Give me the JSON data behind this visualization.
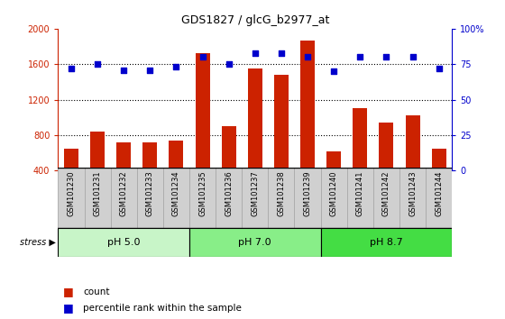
{
  "title": "GDS1827 / glcG_b2977_at",
  "samples": [
    "GSM101230",
    "GSM101231",
    "GSM101232",
    "GSM101233",
    "GSM101234",
    "GSM101235",
    "GSM101236",
    "GSM101237",
    "GSM101238",
    "GSM101239",
    "GSM101240",
    "GSM101241",
    "GSM101242",
    "GSM101243",
    "GSM101244"
  ],
  "counts": [
    650,
    840,
    720,
    720,
    740,
    1720,
    900,
    1550,
    1480,
    1870,
    620,
    1100,
    940,
    1020,
    650
  ],
  "percentile": [
    72,
    75,
    71,
    71,
    73,
    80,
    75,
    83,
    83,
    80,
    70,
    80,
    80,
    80,
    72
  ],
  "groups": [
    {
      "label": "pH 5.0",
      "start": 0,
      "end": 5,
      "color": "#c8f5c8"
    },
    {
      "label": "pH 7.0",
      "start": 5,
      "end": 10,
      "color": "#88ee88"
    },
    {
      "label": "pH 8.7",
      "start": 10,
      "end": 15,
      "color": "#44dd44"
    }
  ],
  "bar_color": "#cc2200",
  "dot_color": "#0000cc",
  "ylim_left": [
    400,
    2000
  ],
  "ylim_right": [
    0,
    100
  ],
  "yticks_left": [
    400,
    800,
    1200,
    1600,
    2000
  ],
  "yticks_right": [
    0,
    25,
    50,
    75,
    100
  ],
  "stress_label": "stress",
  "left_axis_color": "#cc2200",
  "right_axis_color": "#0000cc",
  "grid_color": "black",
  "sample_bg_color": "#d0d0d0",
  "sample_border_color": "#aaaaaa"
}
